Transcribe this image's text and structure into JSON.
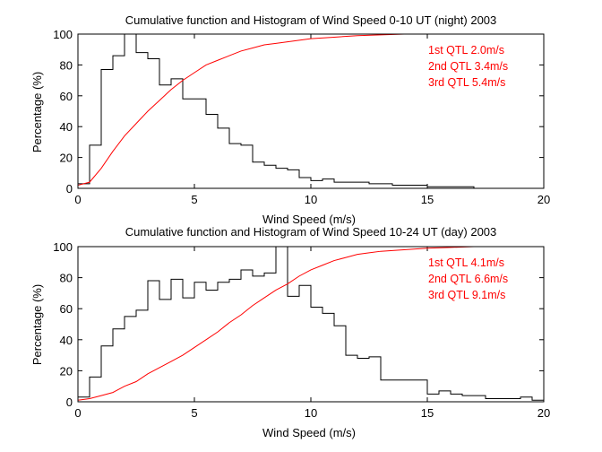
{
  "colors": {
    "histogram": "#000000",
    "cumulative": "#ff0000",
    "axes": "#000000",
    "background": "#ffffff"
  },
  "chart_data": [
    {
      "type": "line",
      "title": "Cumulative function and Histogram of Wind Speed 0-10 UT (night) 2003",
      "xlabel": "Wind Speed (m/s)",
      "ylabel": "Percentage (%)",
      "xlim": [
        0,
        20
      ],
      "ylim": [
        0,
        100
      ],
      "xticks": [
        0,
        5,
        10,
        15,
        20
      ],
      "yticks": [
        0,
        20,
        40,
        60,
        80,
        100
      ],
      "series": [
        {
          "name": "Histogram",
          "style": "stairs",
          "bin_edges": [
            0,
            0.5,
            1,
            1.5,
            2,
            2.5,
            3,
            3.5,
            4,
            4.5,
            5,
            5.5,
            6,
            6.5,
            7,
            7.5,
            8,
            8.5,
            9,
            9.5,
            10,
            10.5,
            11,
            11.5,
            12,
            12.5,
            13,
            13.5,
            14,
            14.5,
            15,
            15.5,
            16,
            16.5,
            17,
            17.5,
            18,
            18.5
          ],
          "values": [
            3,
            28,
            77,
            86,
            100,
            88,
            84,
            67,
            71,
            58,
            58,
            48,
            39,
            29,
            28,
            17,
            15,
            13,
            12,
            7,
            5,
            6,
            4,
            4,
            4,
            3,
            3,
            2,
            2,
            2,
            1,
            1,
            1,
            1,
            0,
            0,
            0
          ]
        },
        {
          "name": "Cumulative",
          "x": [
            0,
            0.5,
            1,
            1.5,
            2,
            2.5,
            3,
            3.5,
            4,
            4.5,
            5,
            5.5,
            6,
            6.5,
            7,
            7.5,
            8,
            8.5,
            9,
            9.5,
            10,
            11,
            12,
            13,
            14,
            18
          ],
          "values": [
            2,
            4,
            13,
            24,
            34,
            42,
            50,
            57,
            64,
            70,
            75,
            80,
            83,
            86,
            89,
            91,
            93,
            94,
            95,
            96,
            97,
            98,
            99,
            99.5,
            100,
            100
          ]
        }
      ],
      "annotations": [
        "1st QTL 2.0m/s",
        "2nd QTL 3.4m/s",
        "3rd QTL 5.4m/s"
      ]
    },
    {
      "type": "line",
      "title": "Cumulative function and Histogram of Wind Speed 10-24 UT (day) 2003",
      "xlabel": "Wind Speed (m/s)",
      "ylabel": "Percentage (%)",
      "xlim": [
        0,
        20
      ],
      "ylim": [
        0,
        100
      ],
      "xticks": [
        0,
        5,
        10,
        15,
        20
      ],
      "yticks": [
        0,
        20,
        40,
        60,
        80,
        100
      ],
      "series": [
        {
          "name": "Histogram",
          "style": "stairs",
          "bin_edges": [
            0,
            0.5,
            1,
            1.5,
            2,
            2.5,
            3,
            3.5,
            4,
            4.5,
            5,
            5.5,
            6,
            6.5,
            7,
            7.5,
            8,
            8.5,
            9,
            9.5,
            10,
            10.5,
            11,
            11.5,
            12,
            12.5,
            13,
            13.5,
            14,
            14.5,
            15,
            15.5,
            16,
            16.5,
            17,
            17.5,
            18,
            18.5,
            19,
            19.5,
            20
          ],
          "values": [
            3,
            16,
            36,
            47,
            55,
            59,
            78,
            66,
            79,
            67,
            77,
            72,
            77,
            79,
            85,
            81,
            83,
            100,
            68,
            75,
            61,
            57,
            49,
            30,
            28,
            29,
            14,
            14,
            14,
            14,
            5,
            7,
            5,
            4,
            4,
            2,
            2,
            2,
            3,
            1
          ]
        },
        {
          "name": "Cumulative",
          "x": [
            0,
            0.5,
            1,
            1.5,
            2,
            2.5,
            3,
            3.5,
            4,
            4.5,
            5,
            5.5,
            6,
            6.5,
            7,
            7.5,
            8,
            8.5,
            9,
            9.5,
            10,
            10.5,
            11,
            11.5,
            12,
            12.5,
            13,
            14,
            15,
            16,
            17,
            18,
            19,
            20
          ],
          "values": [
            1,
            2,
            4,
            6,
            10,
            13,
            18,
            22,
            26,
            30,
            35,
            40,
            45,
            51,
            56,
            62,
            67,
            72,
            76,
            81,
            85,
            88,
            91,
            93,
            95,
            96,
            97,
            98,
            99,
            99.5,
            100,
            100,
            100,
            100
          ]
        }
      ],
      "annotations": [
        "1st QTL 4.1m/s",
        "2nd QTL 6.6m/s",
        "3rd QTL 9.1m/s"
      ]
    }
  ]
}
